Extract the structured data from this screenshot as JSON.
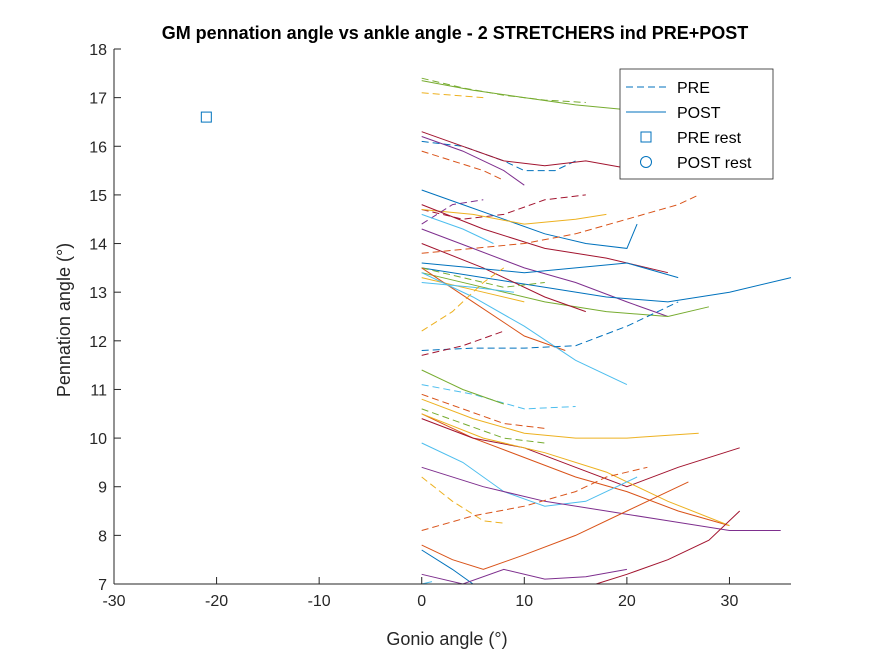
{
  "chart_data": {
    "type": "line",
    "title": "GM pennation angle vs ankle angle - 2 STRETCHERS ind PRE+POST",
    "xlabel": "Gonio angle (°)",
    "ylabel": "Pennation angle (°)",
    "xlim": [
      -30,
      36
    ],
    "ylim": [
      7,
      18
    ],
    "xticks": [
      -30,
      -20,
      -10,
      0,
      10,
      20,
      30
    ],
    "yticks": [
      7,
      8,
      9,
      10,
      11,
      12,
      13,
      14,
      15,
      16,
      17,
      18
    ],
    "grid": false,
    "legend": {
      "placement": "top-right",
      "entries": [
        {
          "label": "PRE",
          "style": "dashed"
        },
        {
          "label": "POST",
          "style": "solid"
        },
        {
          "label": "PRE rest",
          "style": "square"
        },
        {
          "label": "POST rest",
          "style": "circle"
        }
      ]
    },
    "markers": [
      {
        "kind": "square",
        "x": -21,
        "y": 16.6,
        "color": "#0072BD"
      }
    ],
    "series": [
      {
        "style": "dashed",
        "color": "#77AC30",
        "points": [
          [
            0,
            17.4
          ],
          [
            4,
            17.2
          ],
          [
            8,
            17.05
          ],
          [
            12,
            16.95
          ],
          [
            16,
            16.9
          ]
        ]
      },
      {
        "style": "solid",
        "color": "#77AC30",
        "points": [
          [
            0,
            17.35
          ],
          [
            5,
            17.15
          ],
          [
            10,
            17.0
          ],
          [
            15,
            16.85
          ],
          [
            20,
            16.75
          ],
          [
            25,
            16.65
          ]
        ]
      },
      {
        "style": "dashed",
        "color": "#EDB120",
        "points": [
          [
            0,
            17.1
          ],
          [
            3,
            17.05
          ],
          [
            6,
            17.0
          ]
        ]
      },
      {
        "style": "dashed",
        "color": "#0072BD",
        "points": [
          [
            0,
            16.1
          ],
          [
            4,
            16.0
          ],
          [
            8,
            15.7
          ],
          [
            10,
            15.5
          ],
          [
            13,
            15.5
          ],
          [
            15,
            15.7
          ]
        ]
      },
      {
        "style": "solid",
        "color": "#A2142F",
        "points": [
          [
            0,
            16.3
          ],
          [
            4,
            16.0
          ],
          [
            8,
            15.7
          ],
          [
            12,
            15.6
          ],
          [
            16,
            15.7
          ],
          [
            20,
            15.55
          ],
          [
            24,
            15.4
          ]
        ]
      },
      {
        "style": "dashed",
        "color": "#D95319",
        "points": [
          [
            0,
            15.9
          ],
          [
            3,
            15.7
          ],
          [
            6,
            15.5
          ],
          [
            8,
            15.3
          ]
        ]
      },
      {
        "style": "solid",
        "color": "#7E2F8E",
        "points": [
          [
            0,
            16.2
          ],
          [
            4,
            15.9
          ],
          [
            8,
            15.5
          ],
          [
            10,
            15.2
          ]
        ]
      },
      {
        "style": "dashed",
        "color": "#A2142F",
        "points": [
          [
            0,
            14.7
          ],
          [
            4,
            14.5
          ],
          [
            8,
            14.6
          ],
          [
            12,
            14.9
          ],
          [
            16,
            15.0
          ]
        ]
      },
      {
        "style": "solid",
        "color": "#0072BD",
        "points": [
          [
            0,
            15.1
          ],
          [
            4,
            14.8
          ],
          [
            8,
            14.5
          ],
          [
            12,
            14.2
          ],
          [
            16,
            14.0
          ],
          [
            20,
            13.9
          ],
          [
            21,
            14.4
          ]
        ]
      },
      {
        "style": "solid",
        "color": "#EDB120",
        "points": [
          [
            0,
            14.7
          ],
          [
            5,
            14.6
          ],
          [
            10,
            14.4
          ],
          [
            15,
            14.5
          ],
          [
            18,
            14.6
          ]
        ]
      },
      {
        "style": "solid",
        "color": "#7E2F8E",
        "points": [
          [
            0,
            14.3
          ],
          [
            5,
            13.9
          ],
          [
            10,
            13.5
          ],
          [
            15,
            13.2
          ],
          [
            20,
            12.8
          ],
          [
            24,
            12.5
          ]
        ]
      },
      {
        "style": "solid",
        "color": "#A2142F",
        "points": [
          [
            0,
            14.8
          ],
          [
            6,
            14.3
          ],
          [
            12,
            13.9
          ],
          [
            18,
            13.7
          ],
          [
            24,
            13.4
          ]
        ]
      },
      {
        "style": "dashed",
        "color": "#D95319",
        "points": [
          [
            0,
            13.8
          ],
          [
            5,
            13.9
          ],
          [
            10,
            14.0
          ],
          [
            15,
            14.2
          ],
          [
            20,
            14.5
          ],
          [
            25,
            14.8
          ],
          [
            27,
            15.0
          ]
        ]
      },
      {
        "style": "dashed",
        "color": "#7E2F8E",
        "points": [
          [
            0,
            14.4
          ],
          [
            3,
            14.8
          ],
          [
            6,
            14.9
          ]
        ]
      },
      {
        "style": "solid",
        "color": "#4DBEEE",
        "points": [
          [
            0,
            14.6
          ],
          [
            4,
            14.3
          ],
          [
            7,
            14.0
          ]
        ]
      },
      {
        "style": "solid",
        "color": "#0072BD",
        "points": [
          [
            0,
            13.5
          ],
          [
            6,
            13.3
          ],
          [
            12,
            13.1
          ],
          [
            18,
            12.9
          ],
          [
            24,
            12.8
          ],
          [
            30,
            13.0
          ],
          [
            36,
            13.3
          ]
        ]
      },
      {
        "style": "solid",
        "color": "#77AC30",
        "points": [
          [
            0,
            13.4
          ],
          [
            6,
            13.1
          ],
          [
            12,
            12.8
          ],
          [
            18,
            12.6
          ],
          [
            24,
            12.5
          ],
          [
            28,
            12.7
          ]
        ]
      },
      {
        "style": "solid",
        "color": "#A2142F",
        "points": [
          [
            0,
            14.0
          ],
          [
            6,
            13.5
          ],
          [
            12,
            12.9
          ],
          [
            16,
            12.6
          ]
        ]
      },
      {
        "style": "solid",
        "color": "#0072BD",
        "points": [
          [
            0,
            13.6
          ],
          [
            5,
            13.5
          ],
          [
            10,
            13.4
          ],
          [
            15,
            13.5
          ],
          [
            20,
            13.6
          ],
          [
            25,
            13.3
          ]
        ]
      },
      {
        "style": "solid",
        "color": "#EDB120",
        "points": [
          [
            0,
            13.3
          ],
          [
            6,
            13.0
          ],
          [
            10,
            12.8
          ]
        ]
      },
      {
        "style": "solid",
        "color": "#4DBEEE",
        "points": [
          [
            0,
            13.2
          ],
          [
            5,
            13.1
          ],
          [
            9,
            13.0
          ]
        ]
      },
      {
        "style": "dashed",
        "color": "#77AC30",
        "points": [
          [
            0,
            13.5
          ],
          [
            4,
            13.3
          ],
          [
            8,
            13.1
          ],
          [
            12,
            13.2
          ]
        ]
      },
      {
        "style": "solid",
        "color": "#D95319",
        "points": [
          [
            0,
            13.5
          ],
          [
            5,
            12.8
          ],
          [
            10,
            12.1
          ],
          [
            14,
            11.8
          ]
        ]
      },
      {
        "style": "solid",
        "color": "#4DBEEE",
        "points": [
          [
            0,
            13.4
          ],
          [
            5,
            12.9
          ],
          [
            10,
            12.3
          ],
          [
            15,
            11.6
          ],
          [
            20,
            11.1
          ]
        ]
      },
      {
        "style": "dashed",
        "color": "#EDB120",
        "points": [
          [
            0,
            12.2
          ],
          [
            3,
            12.6
          ],
          [
            6,
            13.2
          ],
          [
            8,
            13.5
          ]
        ]
      },
      {
        "style": "dashed",
        "color": "#0072BD",
        "points": [
          [
            0,
            11.8
          ],
          [
            5,
            11.85
          ],
          [
            10,
            11.85
          ],
          [
            15,
            11.9
          ],
          [
            20,
            12.3
          ],
          [
            25,
            12.8
          ]
        ]
      },
      {
        "style": "dashed",
        "color": "#A2142F",
        "points": [
          [
            0,
            11.7
          ],
          [
            4,
            11.9
          ],
          [
            8,
            12.2
          ]
        ]
      },
      {
        "style": "dashed",
        "color": "#4DBEEE",
        "points": [
          [
            0,
            11.1
          ],
          [
            5,
            10.9
          ],
          [
            10,
            10.6
          ],
          [
            15,
            10.65
          ]
        ]
      },
      {
        "style": "solid",
        "color": "#77AC30",
        "points": [
          [
            0,
            11.4
          ],
          [
            4,
            11.0
          ],
          [
            8,
            10.7
          ]
        ]
      },
      {
        "style": "dashed",
        "color": "#D95319",
        "points": [
          [
            0,
            10.9
          ],
          [
            4,
            10.6
          ],
          [
            8,
            10.3
          ],
          [
            12,
            10.2
          ]
        ]
      },
      {
        "style": "solid",
        "color": "#EDB120",
        "points": [
          [
            0,
            10.8
          ],
          [
            5,
            10.4
          ],
          [
            10,
            10.1
          ],
          [
            15,
            10.0
          ],
          [
            20,
            10.0
          ],
          [
            27,
            10.1
          ]
        ]
      },
      {
        "style": "dashed",
        "color": "#77AC30",
        "points": [
          [
            0,
            10.6
          ],
          [
            4,
            10.3
          ],
          [
            8,
            10.0
          ],
          [
            12,
            9.9
          ]
        ]
      },
      {
        "style": "solid",
        "color": "#D95319",
        "points": [
          [
            0,
            10.5
          ],
          [
            5,
            10.0
          ],
          [
            10,
            9.6
          ],
          [
            15,
            9.2
          ],
          [
            20,
            8.9
          ],
          [
            25,
            8.5
          ],
          [
            30,
            8.2
          ]
        ]
      },
      {
        "style": "solid",
        "color": "#A2142F",
        "points": [
          [
            0,
            10.4
          ],
          [
            5,
            10.0
          ],
          [
            10,
            9.8
          ],
          [
            15,
            9.4
          ],
          [
            20,
            9.0
          ],
          [
            25,
            9.4
          ],
          [
            31,
            9.8
          ]
        ]
      },
      {
        "style": "solid",
        "color": "#EDB120",
        "points": [
          [
            0,
            10.5
          ],
          [
            6,
            10.0
          ],
          [
            12,
            9.7
          ],
          [
            18,
            9.3
          ],
          [
            24,
            8.7
          ],
          [
            30,
            8.2
          ]
        ]
      },
      {
        "style": "solid",
        "color": "#4DBEEE",
        "points": [
          [
            0,
            9.9
          ],
          [
            4,
            9.5
          ],
          [
            8,
            8.9
          ],
          [
            12,
            8.6
          ],
          [
            16,
            8.7
          ],
          [
            21,
            9.2
          ]
        ]
      },
      {
        "style": "solid",
        "color": "#7E2F8E",
        "points": [
          [
            0,
            9.4
          ],
          [
            6,
            9.0
          ],
          [
            12,
            8.7
          ],
          [
            18,
            8.5
          ],
          [
            24,
            8.3
          ],
          [
            30,
            8.1
          ],
          [
            35,
            8.1
          ]
        ]
      },
      {
        "style": "dashed",
        "color": "#EDB120",
        "points": [
          [
            0,
            9.2
          ],
          [
            3,
            8.7
          ],
          [
            6,
            8.3
          ],
          [
            8,
            8.25
          ]
        ]
      },
      {
        "style": "dashed",
        "color": "#D95319",
        "points": [
          [
            0,
            8.1
          ],
          [
            5,
            8.4
          ],
          [
            10,
            8.6
          ],
          [
            15,
            8.9
          ],
          [
            18,
            9.2
          ],
          [
            22,
            9.4
          ]
        ]
      },
      {
        "style": "solid",
        "color": "#D95319",
        "points": [
          [
            0,
            7.8
          ],
          [
            3,
            7.5
          ],
          [
            6,
            7.3
          ],
          [
            10,
            7.6
          ],
          [
            15,
            8.0
          ],
          [
            20,
            8.5
          ],
          [
            26,
            9.1
          ]
        ]
      },
      {
        "style": "solid",
        "color": "#0072BD",
        "points": [
          [
            0,
            7.7
          ],
          [
            3,
            7.3
          ],
          [
            5,
            7.0
          ]
        ]
      },
      {
        "style": "solid",
        "color": "#7E2F8E",
        "points": [
          [
            0,
            7.2
          ],
          [
            4,
            7.0
          ],
          [
            8,
            7.3
          ],
          [
            12,
            7.1
          ],
          [
            16,
            7.15
          ],
          [
            20,
            7.3
          ]
        ]
      },
      {
        "style": "solid",
        "color": "#A2142F",
        "points": [
          [
            17,
            7.0
          ],
          [
            20,
            7.2
          ],
          [
            24,
            7.5
          ],
          [
            28,
            7.9
          ],
          [
            31,
            8.5
          ]
        ]
      },
      {
        "style": "solid",
        "color": "#4DBEEE",
        "points": [
          [
            0,
            7.0
          ],
          [
            1,
            7.05
          ]
        ]
      }
    ]
  }
}
